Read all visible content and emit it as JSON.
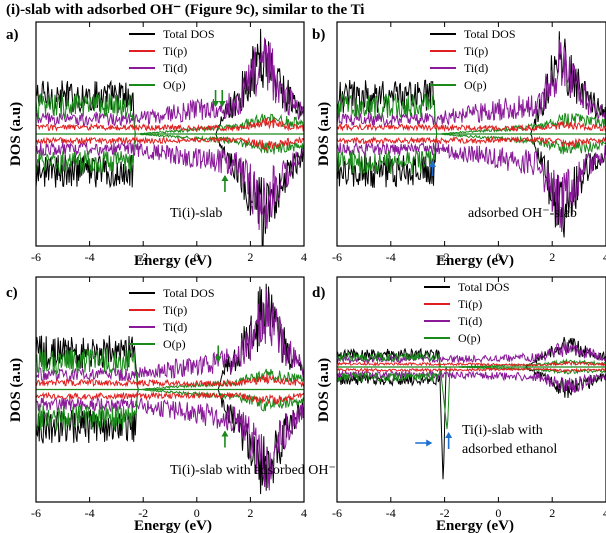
{
  "caption_fragment": "(i)-slab with adsorbed OH⁻ (Figure 9c), similar to the Ti",
  "colors": {
    "Total DOS": "#000000",
    "Ti(p)": "#e02020",
    "Ti(d)": "#8a1a9a",
    "O(p)": "#1a8a1a",
    "arrow_green": "#1a8a1a",
    "arrow_blue": "#1a6fd0"
  },
  "chart_data": [
    {
      "panel": "a)",
      "type": "line",
      "title": "",
      "xlabel": "Energy (eV)",
      "ylabel": "DOS (a.u)",
      "xlim": [
        -6,
        4
      ],
      "xticks": [
        -6,
        -4,
        -2,
        0,
        2,
        4
      ],
      "annotation": "Ti(i)-slab",
      "legend_loc": "top-center",
      "series": [
        {
          "name": "Total DOS",
          "values": [
            [
              -6,
              1.0
            ],
            [
              -2.4,
              1.0
            ],
            [
              -2.3,
              0
            ],
            [
              0.7,
              0
            ],
            [
              1.0,
              0.5
            ],
            [
              1.5,
              0.9
            ],
            [
              2.5,
              2.2
            ],
            [
              3.2,
              1.2
            ],
            [
              4,
              0.5
            ]
          ]
        },
        {
          "name": "Ti(p)",
          "values": [
            [
              -6,
              0.18
            ],
            [
              -2.4,
              0.18
            ],
            [
              1.5,
              0.15
            ],
            [
              2.6,
              0.3
            ],
            [
              4,
              0.15
            ]
          ]
        },
        {
          "name": "Ti(d)",
          "values": [
            [
              -6,
              0.4
            ],
            [
              -2.4,
              0.4
            ],
            [
              1.5,
              0.8
            ],
            [
              2.5,
              2.0
            ],
            [
              3.2,
              1.1
            ],
            [
              4,
              0.5
            ]
          ]
        },
        {
          "name": "O(p)",
          "values": [
            [
              -6,
              0.75
            ],
            [
              -2.4,
              0.75
            ],
            [
              -2.3,
              0
            ],
            [
              1.5,
              0.2
            ],
            [
              2.5,
              0.4
            ],
            [
              4,
              0.3
            ]
          ]
        }
      ],
      "arrows": [
        {
          "x": 0.7,
          "dir": "down",
          "color": "green"
        },
        {
          "x": 0.95,
          "dir": "down",
          "color": "green"
        },
        {
          "x": 1.05,
          "dir": "up",
          "color": "green"
        }
      ]
    },
    {
      "panel": "b)",
      "type": "line",
      "title": "",
      "xlabel": "Energy (eV)",
      "ylabel": "DOS (a.u)",
      "xlim": [
        -6,
        4
      ],
      "xticks": [
        -6,
        -4,
        -2,
        0,
        2,
        4
      ],
      "annotation": "adsorbed OH⁻-slab",
      "legend_loc": "top-center",
      "series": [
        {
          "name": "Total DOS",
          "values": [
            [
              -6,
              1.0
            ],
            [
              -2.4,
              1.0
            ],
            [
              -2.3,
              0
            ],
            [
              1.2,
              0
            ],
            [
              1.5,
              0.6
            ],
            [
              2.3,
              2.1
            ],
            [
              3.2,
              1.0
            ],
            [
              4,
              0.5
            ]
          ]
        },
        {
          "name": "Ti(p)",
          "values": [
            [
              -6,
              0.18
            ],
            [
              -2.4,
              0.18
            ],
            [
              1.5,
              0.15
            ],
            [
              2.5,
              0.25
            ],
            [
              4,
              0.15
            ]
          ]
        },
        {
          "name": "Ti(d)",
          "values": [
            [
              -6,
              0.4
            ],
            [
              -2.4,
              0.4
            ],
            [
              1.5,
              0.8
            ],
            [
              2.3,
              1.9
            ],
            [
              3.2,
              1.0
            ],
            [
              4,
              0.5
            ]
          ]
        },
        {
          "name": "O(p)",
          "values": [
            [
              -6,
              0.75
            ],
            [
              -2.4,
              0.75
            ],
            [
              -2.3,
              0
            ],
            [
              1.5,
              0.2
            ],
            [
              2.5,
              0.4
            ],
            [
              4,
              0.3
            ]
          ]
        }
      ],
      "arrows": [
        {
          "x": -2.45,
          "dir": "up",
          "color": "blue"
        }
      ]
    },
    {
      "panel": "c)",
      "type": "line",
      "title": "",
      "xlabel": "Energy (eV)",
      "ylabel": "DOS (a.u)",
      "xlim": [
        -6,
        4
      ],
      "xticks": [
        -6,
        -4,
        -2,
        0,
        2,
        4
      ],
      "annotation": "Ti(i)-slab with adsorbed OH⁻",
      "legend_loc": "top-center",
      "series": [
        {
          "name": "Total DOS",
          "values": [
            [
              -6,
              1.0
            ],
            [
              -2.3,
              1.0
            ],
            [
              -2.2,
              0
            ],
            [
              0.8,
              0
            ],
            [
              1.0,
              0.5
            ],
            [
              1.5,
              0.9
            ],
            [
              2.6,
              2.2
            ],
            [
              3.3,
              1.1
            ],
            [
              4,
              0.5
            ]
          ]
        },
        {
          "name": "Ti(p)",
          "values": [
            [
              -6,
              0.18
            ],
            [
              -2.3,
              0.18
            ],
            [
              1.5,
              0.15
            ],
            [
              2.6,
              0.3
            ],
            [
              4,
              0.15
            ]
          ]
        },
        {
          "name": "Ti(d)",
          "values": [
            [
              -6,
              0.4
            ],
            [
              -2.3,
              0.4
            ],
            [
              1.5,
              0.8
            ],
            [
              2.6,
              2.0
            ],
            [
              3.3,
              1.1
            ],
            [
              4,
              0.5
            ]
          ]
        },
        {
          "name": "O(p)",
          "values": [
            [
              -6,
              0.75
            ],
            [
              -2.3,
              0.75
            ],
            [
              -2.2,
              0
            ],
            [
              1.5,
              0.2
            ],
            [
              2.5,
              0.4
            ],
            [
              4,
              0.3
            ]
          ]
        }
      ],
      "arrows": [
        {
          "x": 0.8,
          "dir": "down",
          "color": "green"
        },
        {
          "x": 1.05,
          "dir": "up",
          "color": "green"
        }
      ]
    },
    {
      "panel": "d)",
      "type": "line",
      "title": "",
      "xlabel": "Energy (eV)",
      "ylabel": "DOS (a.u)",
      "xlim": [
        -6,
        4
      ],
      "xticks": [
        -6,
        -4,
        -2,
        0,
        2,
        4
      ],
      "annotation_lines": [
        "Ti(i)-slab with",
        "adsorbed ethanol"
      ],
      "legend_loc": "top-center",
      "series": [
        {
          "name": "Total DOS",
          "values": [
            [
              -6,
              0.5
            ],
            [
              -2.2,
              0.5
            ],
            [
              -2.05,
              -4.8
            ],
            [
              -1.95,
              0
            ],
            [
              1.0,
              0
            ],
            [
              2.5,
              0.9
            ],
            [
              4,
              0.4
            ]
          ]
        },
        {
          "name": "Ti(p)",
          "values": [
            [
              -6,
              0.12
            ],
            [
              -2.2,
              0.12
            ],
            [
              1.5,
              0.08
            ],
            [
              2.6,
              0.15
            ],
            [
              4,
              0.1
            ]
          ]
        },
        {
          "name": "Ti(d)",
          "values": [
            [
              -6,
              0.3
            ],
            [
              -2.2,
              0.3
            ],
            [
              1.5,
              0.4
            ],
            [
              2.6,
              0.8
            ],
            [
              4,
              0.35
            ]
          ]
        },
        {
          "name": "O(p)",
          "values": [
            [
              -6,
              0.4
            ],
            [
              -2.2,
              0.4
            ],
            [
              -1.9,
              -2.6
            ],
            [
              -1.8,
              0
            ],
            [
              1.5,
              0.1
            ],
            [
              2.5,
              0.2
            ],
            [
              4,
              0.15
            ]
          ]
        }
      ],
      "arrows": [
        {
          "x": -2.2,
          "dir": "right",
          "color": "blue"
        },
        {
          "x": -1.85,
          "dir": "up",
          "color": "blue"
        }
      ]
    }
  ]
}
